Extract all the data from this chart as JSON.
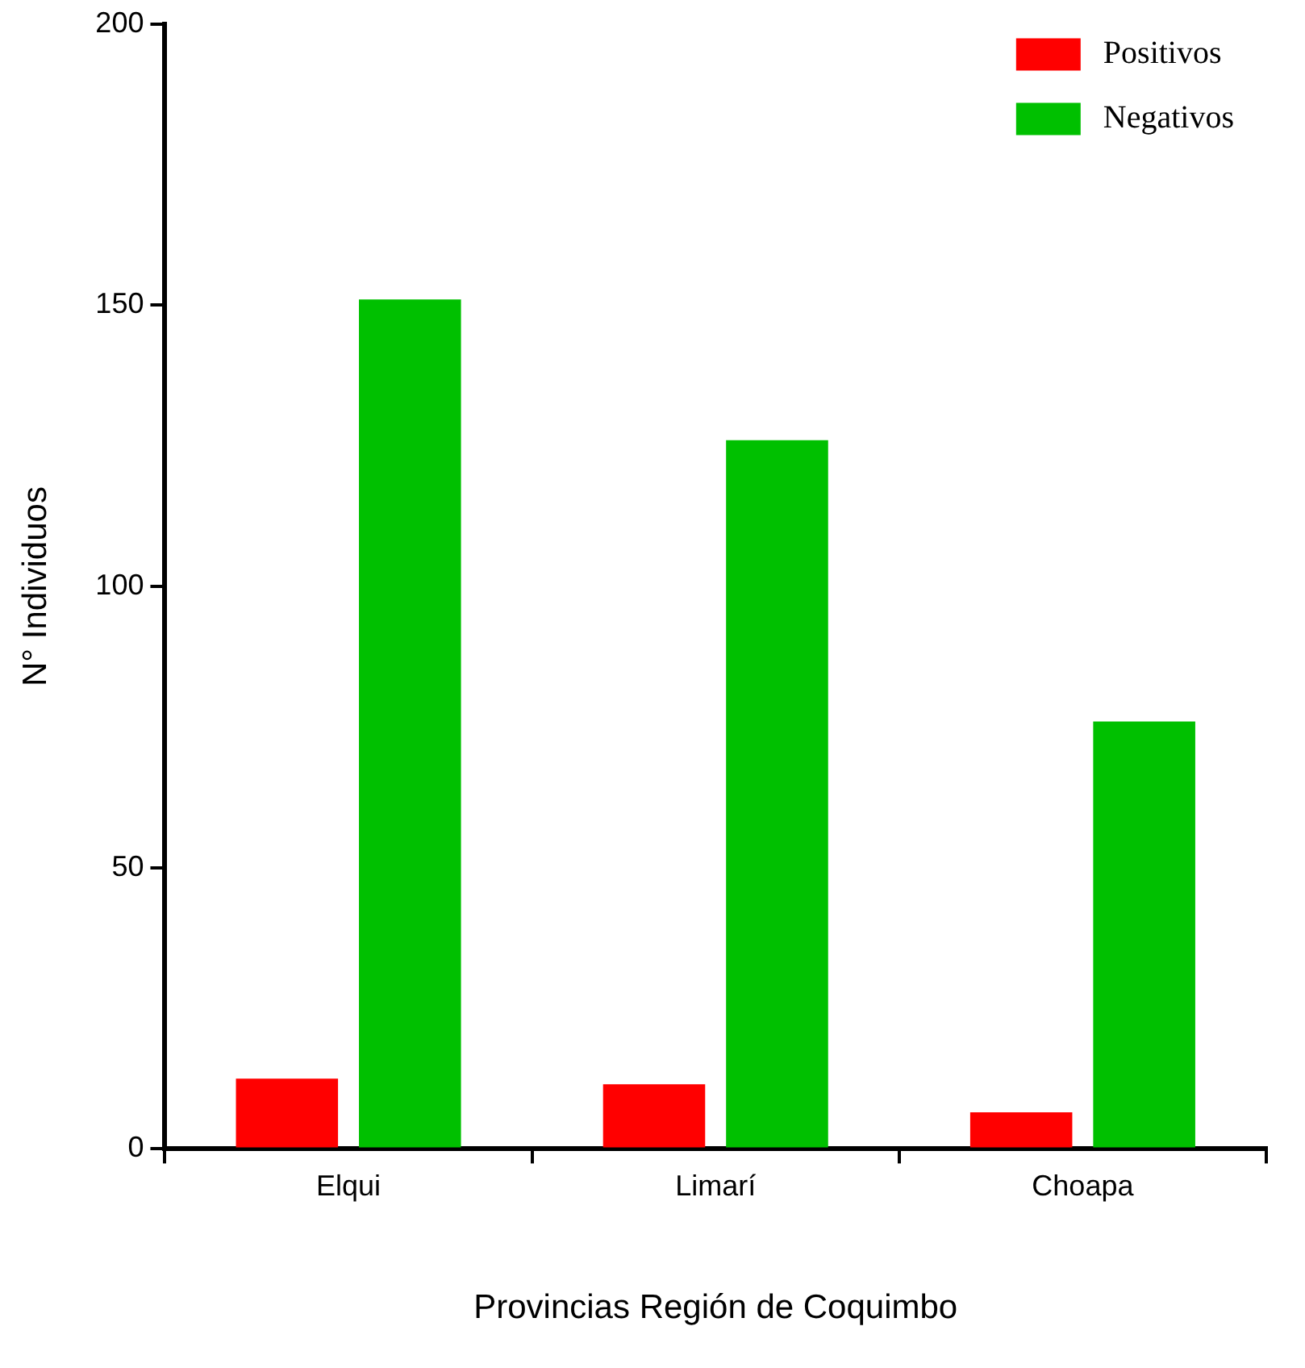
{
  "chart_data": {
    "type": "bar",
    "xlabel": "Provincias Región de Coquimbo",
    "ylabel": "N° Individuos",
    "categories": [
      "Elqui",
      "Limarí",
      "Choapa"
    ],
    "series": [
      {
        "name": "Positivos",
        "color": "#ff0000",
        "values": [
          12.5,
          11.5,
          6.5
        ]
      },
      {
        "name": "Negativos",
        "color": "#00c000",
        "values": [
          151,
          126,
          76
        ]
      }
    ],
    "ylim": [
      0,
      200
    ],
    "yticks": [
      0,
      50,
      100,
      150,
      200
    ],
    "legend": "top right"
  }
}
